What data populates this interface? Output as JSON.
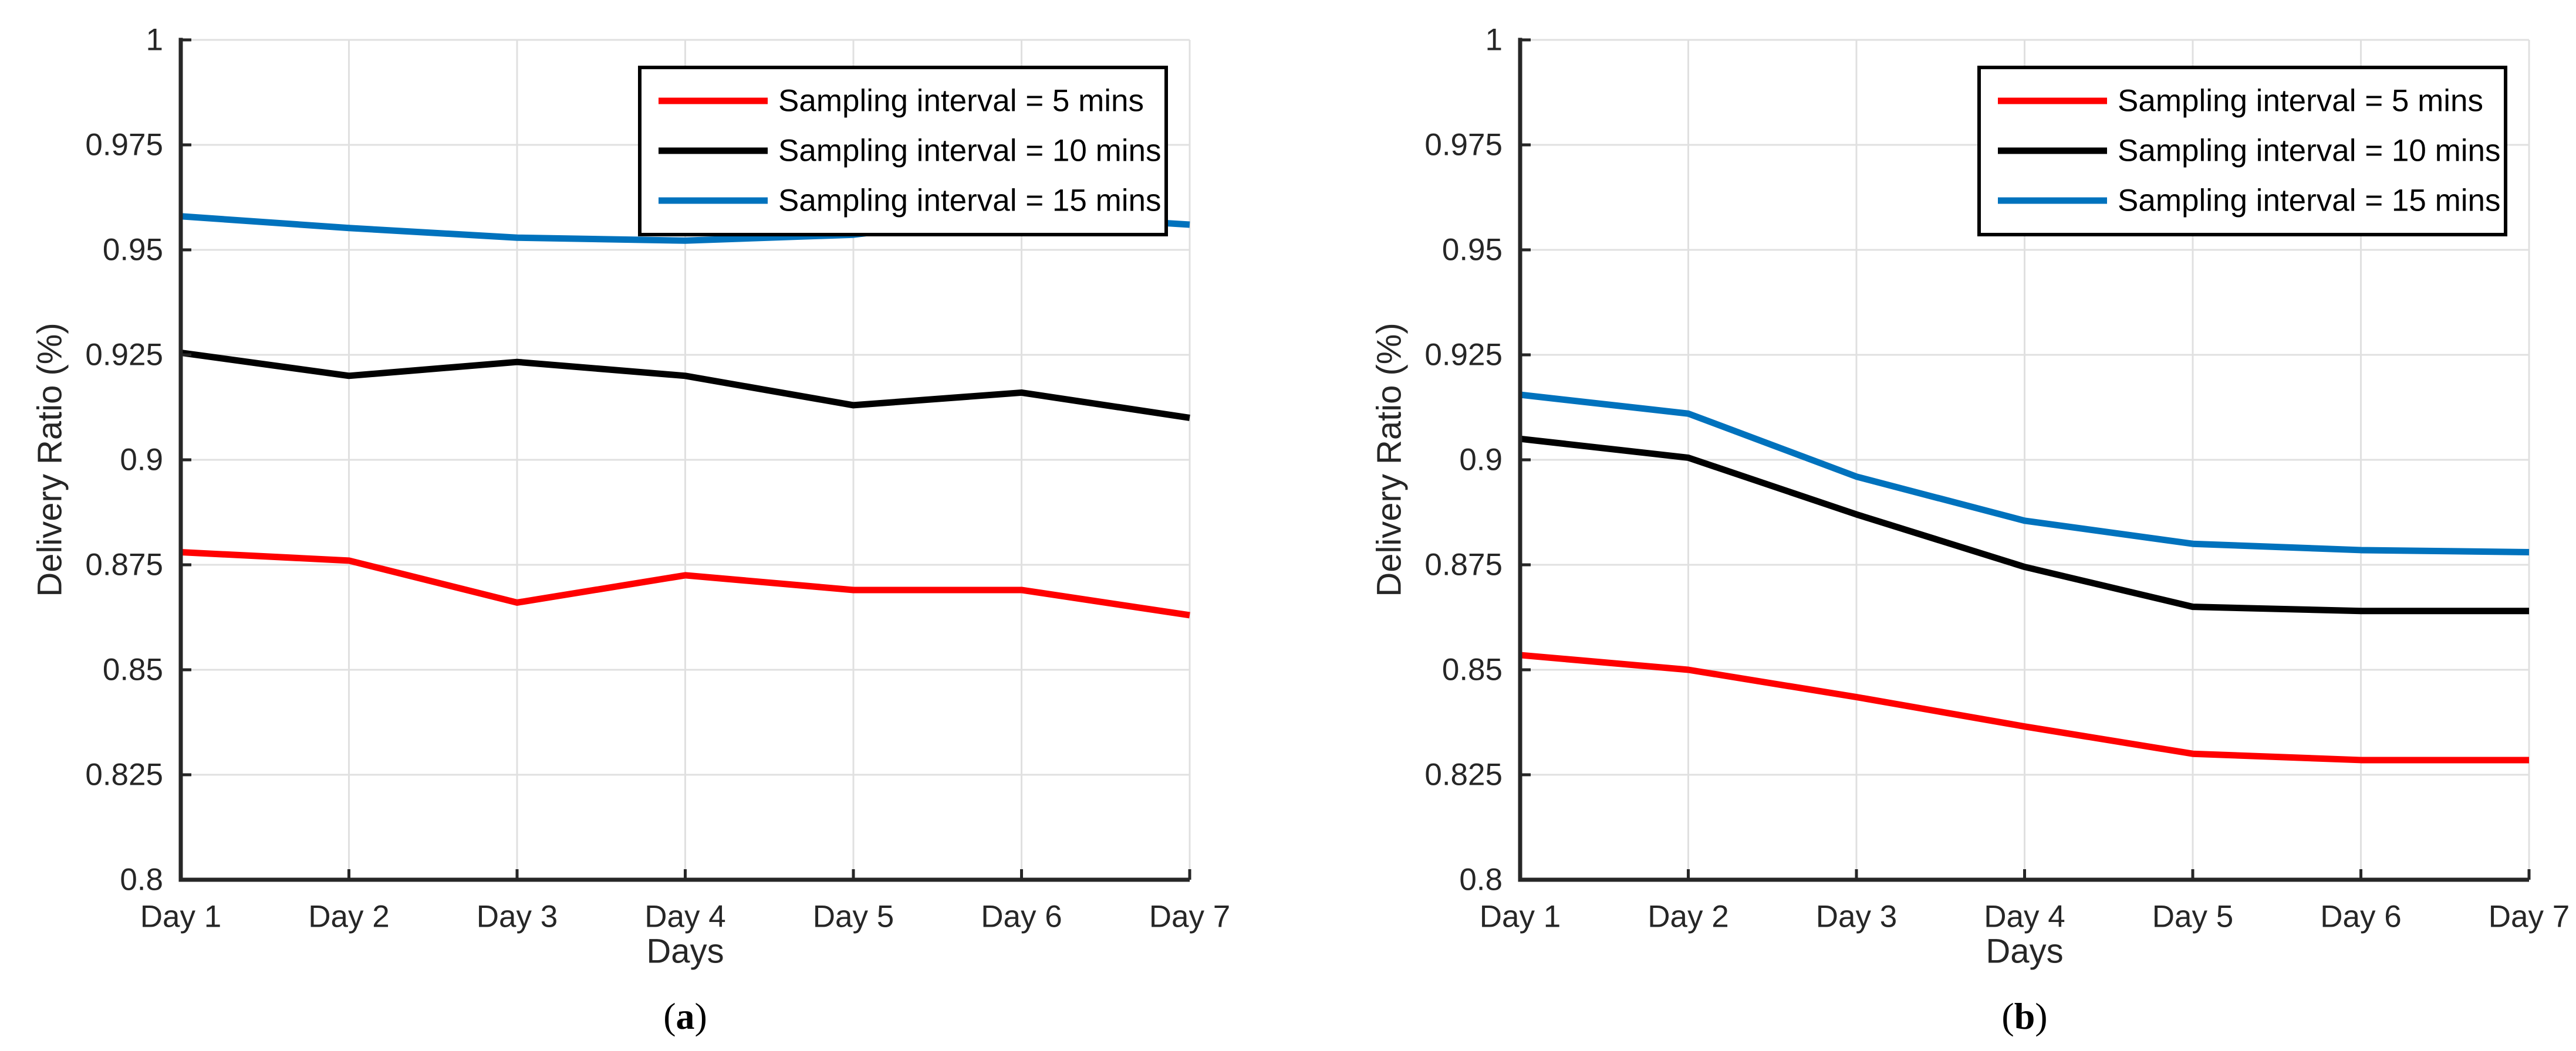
{
  "figure": {
    "background": "#FFFFFF",
    "captions": {
      "a": "a",
      "b": "b"
    }
  },
  "style": {
    "axis_color": "#262626",
    "grid_color": "#E0E0E0",
    "text_color": "#262626",
    "legend_border_color": "#000000",
    "legend_background": "#FFFFFF",
    "series_red": "#FF0000",
    "series_black": "#000000",
    "series_blue": "#0072BD"
  },
  "chart_data": [
    {
      "type": "line",
      "caption_letter": "a",
      "title": "",
      "xlabel": "Days",
      "ylabel": "Delivery Ratio (%)",
      "categories": [
        "Day 1",
        "Day 2",
        "Day 3",
        "Day 4",
        "Day 5",
        "Day 6",
        "Day 7"
      ],
      "ylim": [
        0.8,
        1.0
      ],
      "ytick_values": [
        1,
        0.975,
        0.95,
        0.925,
        0.9,
        0.875,
        0.85,
        0.825,
        0.8
      ],
      "ytick_labels": [
        "1",
        "0.975",
        "0.95",
        "0.925",
        "0.9",
        "0.875",
        "0.85",
        "0.825",
        "0.8"
      ],
      "grid": true,
      "legend_position": "northeast",
      "series": [
        {
          "name": "Sampling interval = 5 mins",
          "color": "#FF0000",
          "values": [
            0.878,
            0.876,
            0.866,
            0.8725,
            0.869,
            0.869,
            0.863
          ]
        },
        {
          "name": "Sampling interval = 10 mins",
          "color": "#000000",
          "values": [
            0.9255,
            0.92,
            0.9233,
            0.92,
            0.913,
            0.916,
            0.91
          ]
        },
        {
          "name": "Sampling interval = 15 mins",
          "color": "#0072BD",
          "values": [
            0.958,
            0.9552,
            0.9529,
            0.9522,
            0.9536,
            0.9585,
            0.956
          ]
        }
      ]
    },
    {
      "type": "line",
      "caption_letter": "b",
      "title": "",
      "xlabel": "Days",
      "ylabel": "Delivery Ratio (%)",
      "categories": [
        "Day 1",
        "Day 2",
        "Day 3",
        "Day 4",
        "Day 5",
        "Day 6",
        "Day 7"
      ],
      "ylim": [
        0.8,
        1.0
      ],
      "ytick_values": [
        1,
        0.975,
        0.95,
        0.925,
        0.9,
        0.875,
        0.85,
        0.825,
        0.8
      ],
      "ytick_labels": [
        "1",
        "0.975",
        "0.95",
        "0.925",
        "0.9",
        "0.875",
        "0.85",
        "0.825",
        "0.8"
      ],
      "grid": true,
      "legend_position": "northeast",
      "series": [
        {
          "name": "Sampling interval = 5 mins",
          "color": "#FF0000",
          "values": [
            0.8535,
            0.85,
            0.8435,
            0.8365,
            0.83,
            0.8285,
            0.8285
          ]
        },
        {
          "name": "Sampling interval = 10 mins",
          "color": "#000000",
          "values": [
            0.905,
            0.9005,
            0.887,
            0.8745,
            0.865,
            0.864,
            0.864
          ]
        },
        {
          "name": "Sampling interval = 15 mins",
          "color": "#0072BD",
          "values": [
            0.9155,
            0.911,
            0.896,
            0.8855,
            0.88,
            0.8785,
            0.878
          ]
        }
      ]
    }
  ]
}
